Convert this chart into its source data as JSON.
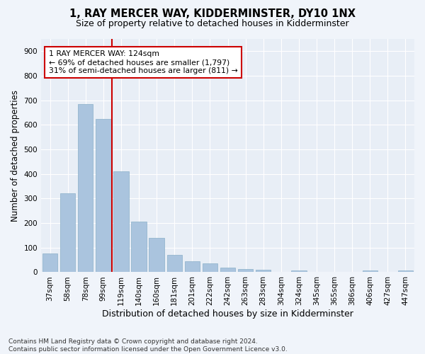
{
  "title": "1, RAY MERCER WAY, KIDDERMINSTER, DY10 1NX",
  "subtitle": "Size of property relative to detached houses in Kidderminster",
  "xlabel_bottom": "Distribution of detached houses by size in Kidderminster",
  "ylabel": "Number of detached properties",
  "bar_labels": [
    "37sqm",
    "58sqm",
    "78sqm",
    "99sqm",
    "119sqm",
    "140sqm",
    "160sqm",
    "181sqm",
    "201sqm",
    "222sqm",
    "242sqm",
    "263sqm",
    "283sqm",
    "304sqm",
    "324sqm",
    "345sqm",
    "365sqm",
    "386sqm",
    "406sqm",
    "427sqm",
    "447sqm"
  ],
  "bar_values": [
    75,
    320,
    685,
    625,
    410,
    205,
    140,
    70,
    45,
    35,
    20,
    12,
    10,
    0,
    8,
    0,
    0,
    0,
    7,
    0,
    7
  ],
  "bar_color": "#aac4de",
  "bar_edge_color": "#8aafc8",
  "vline_color": "#cc0000",
  "annotation_line1": "1 RAY MERCER WAY: 124sqm",
  "annotation_line2": "← 69% of detached houses are smaller (1,797)",
  "annotation_line3": "31% of semi-detached houses are larger (811) →",
  "annotation_box_color": "#ffffff",
  "annotation_box_edge": "#cc0000",
  "ylim": [
    0,
    950
  ],
  "yticks": [
    0,
    100,
    200,
    300,
    400,
    500,
    600,
    700,
    800,
    900
  ],
  "footnote": "Contains HM Land Registry data © Crown copyright and database right 2024.\nContains public sector information licensed under the Open Government Licence v3.0.",
  "bg_color": "#f0f4fa",
  "plot_bg_color": "#e8eef6",
  "grid_color": "#ffffff",
  "title_fontsize": 10.5,
  "subtitle_fontsize": 9,
  "ylabel_fontsize": 8.5,
  "xlabel_fontsize": 9,
  "tick_fontsize": 7.5,
  "footnote_fontsize": 6.5,
  "annotation_fontsize": 7.8
}
